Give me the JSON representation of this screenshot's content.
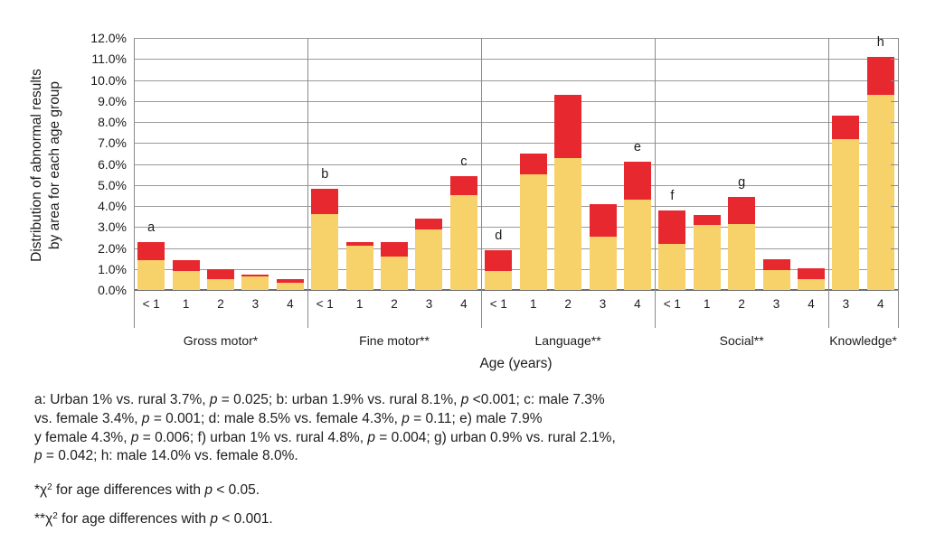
{
  "figure": {
    "y_axis_title_line1": "Distribution of abnormal results",
    "y_axis_title_line2": "by area for each age group",
    "x_axis_title": "Age (years)",
    "y_tick_labels": [
      "12.0%",
      "11.0%",
      "10.0%",
      "9.0%",
      "8.0%",
      "7.0%",
      "6.0%",
      "5.0%",
      "4.0%",
      "3.0%",
      "2.0%",
      "1.0%",
      "0.0%"
    ]
  },
  "chart_data": {
    "type": "bar",
    "stacked": true,
    "unit": "percent",
    "ylim": [
      0,
      12
    ],
    "y_step": 1,
    "grid": true,
    "legend": "none",
    "series_colors": {
      "yellow": "#f7d169",
      "red": "#e7282e"
    },
    "groups": [
      {
        "label": "Gross motor*",
        "categories": [
          "< 1",
          "1",
          "2",
          "3",
          "4"
        ],
        "series": {
          "yellow": [
            1.4,
            0.9,
            0.5,
            0.65,
            0.35
          ],
          "red": [
            0.9,
            0.5,
            0.5,
            0.1,
            0.15
          ]
        },
        "totals": [
          2.3,
          1.4,
          1.0,
          0.75,
          0.5
        ],
        "annotations": [
          {
            "bar": 0,
            "text": "a"
          }
        ]
      },
      {
        "label": "Fine motor**",
        "categories": [
          "< 1",
          "1",
          "2",
          "3",
          "4"
        ],
        "series": {
          "yellow": [
            3.6,
            2.1,
            1.6,
            2.9,
            4.5
          ],
          "red": [
            1.2,
            0.2,
            0.7,
            0.5,
            0.9
          ]
        },
        "totals": [
          4.8,
          2.3,
          2.3,
          3.4,
          5.4
        ],
        "annotations": [
          {
            "bar": 0,
            "text": "b"
          },
          {
            "bar": 4,
            "text": "c"
          }
        ]
      },
      {
        "label": "Language**",
        "categories": [
          "< 1",
          "1",
          "2",
          "3",
          "4"
        ],
        "series": {
          "yellow": [
            0.9,
            5.5,
            6.3,
            2.55,
            4.3
          ],
          "red": [
            1.0,
            1.0,
            3.0,
            1.55,
            1.8
          ]
        },
        "totals": [
          1.9,
          6.5,
          9.3,
          4.1,
          6.1
        ],
        "annotations": [
          {
            "bar": 0,
            "text": "d"
          },
          {
            "bar": 4,
            "text": "e"
          }
        ]
      },
      {
        "label": "Social**",
        "categories": [
          "< 1",
          "1",
          "2",
          "3",
          "4"
        ],
        "series": {
          "yellow": [
            2.2,
            3.1,
            3.15,
            0.95,
            0.5
          ],
          "red": [
            1.6,
            0.45,
            1.3,
            0.5,
            0.55
          ]
        },
        "totals": [
          3.8,
          3.55,
          4.45,
          1.45,
          1.05
        ],
        "annotations": [
          {
            "bar": 0,
            "text": "f"
          },
          {
            "bar": 2,
            "text": "g"
          }
        ]
      },
      {
        "label": "Knowledge*",
        "categories": [
          "3",
          "4"
        ],
        "series": {
          "yellow": [
            7.2,
            9.3
          ],
          "red": [
            1.1,
            1.8
          ]
        },
        "totals": [
          8.3,
          11.1
        ],
        "annotations": [
          {
            "bar": 1,
            "text": "h"
          }
        ]
      }
    ]
  },
  "footnotes": {
    "paragraph_lines": [
      [
        {
          "t": "a: Urban 1% vs. rural 3.7%, "
        },
        {
          "t": "p",
          "s": "i"
        },
        {
          "t": " = 0.025; b: urban 1.9% vs. rural 8.1%, "
        },
        {
          "t": "p",
          "s": "i"
        },
        {
          "t": " <0.001; c: male 7.3%"
        }
      ],
      [
        {
          "t": "vs. female 3.4%, "
        },
        {
          "t": "p",
          "s": "i"
        },
        {
          "t": " = 0.001; d: male 8.5% vs. female 4.3%, "
        },
        {
          "t": "p",
          "s": "i"
        },
        {
          "t": " = 0.11; e) male 7.9%"
        }
      ],
      [
        {
          "t": "y female 4.3%, "
        },
        {
          "t": "p",
          "s": "i"
        },
        {
          "t": " = 0.006; f) urban 1% vs. rural 4.8%, "
        },
        {
          "t": "p",
          "s": "i"
        },
        {
          "t": " = 0.004; g) urban 0.9% vs. rural 2.1%,"
        }
      ],
      [
        {
          "t": "p",
          "s": "i"
        },
        {
          "t": " = 0.042; h: male 14.0% vs. female 8.0%."
        }
      ]
    ],
    "chi_note_1": [
      {
        "t": "*χ"
      },
      {
        "t": "2",
        "s": "sup"
      },
      {
        "t": " for age differences with "
      },
      {
        "t": "p",
        "s": "i"
      },
      {
        "t": " < 0.05."
      }
    ],
    "chi_note_2": [
      {
        "t": "**χ"
      },
      {
        "t": "2",
        "s": "sup"
      },
      {
        "t": " for age differences with "
      },
      {
        "t": "p",
        "s": "i"
      },
      {
        "t": " < 0.001."
      }
    ]
  },
  "colors": {
    "grid": "#9a9a9a",
    "frame": "#8a8a8a",
    "axis": "#6e6e6e",
    "text": "#1c1c1c"
  }
}
